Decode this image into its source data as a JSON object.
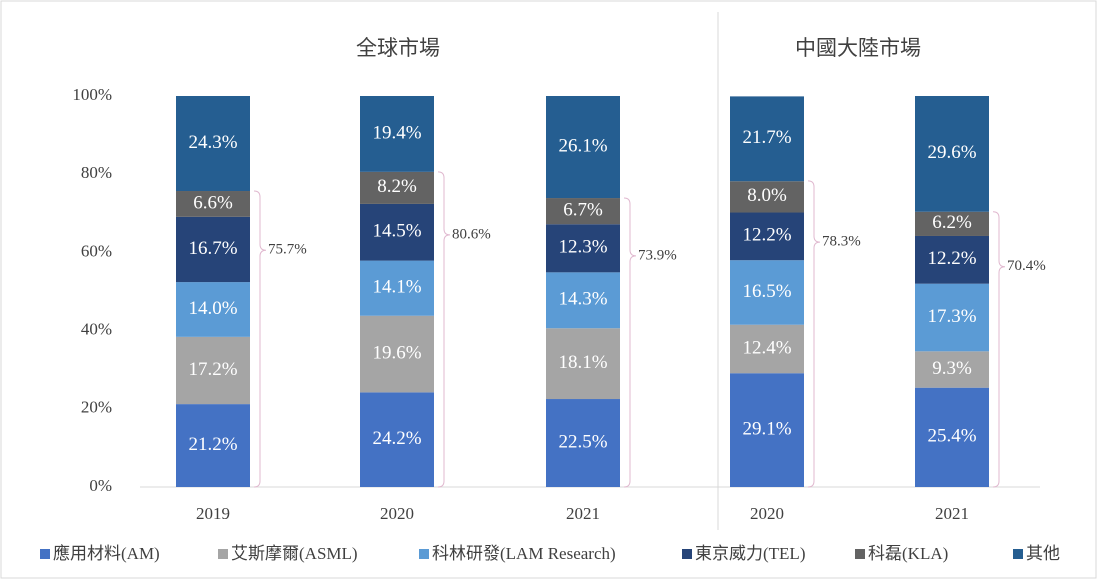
{
  "chart_data": {
    "type": "stacked_bar",
    "group_labels": [
      "全球市場",
      "中國大陸市場"
    ],
    "categories": [
      "2019",
      "2020",
      "2021",
      "2020",
      "2021"
    ],
    "ylim": [
      0,
      100
    ],
    "yticks": [
      {
        "value": 0,
        "label": "0%"
      },
      {
        "value": 20,
        "label": "20%"
      },
      {
        "value": 40,
        "label": "40%"
      },
      {
        "value": 60,
        "label": "60%"
      },
      {
        "value": 80,
        "label": "80%"
      },
      {
        "value": 100,
        "label": "100%"
      }
    ],
    "series": [
      {
        "name": "應用材料(AM)",
        "color": "#4472c4",
        "values": [
          21.2,
          24.2,
          22.5,
          29.1,
          25.4
        ],
        "value_labels": [
          "21.2%",
          "24.2%",
          "22.5%",
          "29.1%",
          "25.4%"
        ]
      },
      {
        "name": "艾斯摩爾(ASML)",
        "color": "#a5a5a5",
        "values": [
          17.2,
          19.6,
          18.1,
          12.4,
          9.3
        ],
        "value_labels": [
          "17.2%",
          "19.6%",
          "18.1%",
          "12.4%",
          "9.3%"
        ]
      },
      {
        "name": "科林研發(LAM Research)",
        "color": "#5b9bd5",
        "values": [
          14.0,
          14.1,
          14.3,
          16.5,
          17.3
        ],
        "value_labels": [
          "14.0%",
          "14.1%",
          "14.3%",
          "16.5%",
          "17.3%"
        ]
      },
      {
        "name": "東京威力(TEL)",
        "color": "#264478",
        "values": [
          16.7,
          14.5,
          12.3,
          12.2,
          12.2
        ],
        "value_labels": [
          "16.7%",
          "14.5%",
          "12.3%",
          "12.2%",
          "12.2%"
        ]
      },
      {
        "name": "科磊(KLA)",
        "color": "#636363",
        "values": [
          6.6,
          8.2,
          6.7,
          8.0,
          6.2
        ],
        "value_labels": [
          "6.6%",
          "8.2%",
          "6.7%",
          "8.0%",
          "6.2%"
        ]
      },
      {
        "name": "其他",
        "color": "#255e91",
        "values": [
          24.3,
          19.4,
          26.1,
          21.7,
          29.6
        ],
        "value_labels": [
          "24.3%",
          "19.4%",
          "26.1%",
          "21.7%",
          "29.6%"
        ]
      }
    ],
    "bracket_totals": [
      {
        "value": 75.7,
        "label": "75.7%"
      },
      {
        "value": 80.6,
        "label": "80.6%"
      },
      {
        "value": 73.9,
        "label": "73.9%"
      },
      {
        "value": 78.3,
        "label": "78.3%"
      },
      {
        "value": 70.4,
        "label": "70.4%"
      }
    ]
  }
}
